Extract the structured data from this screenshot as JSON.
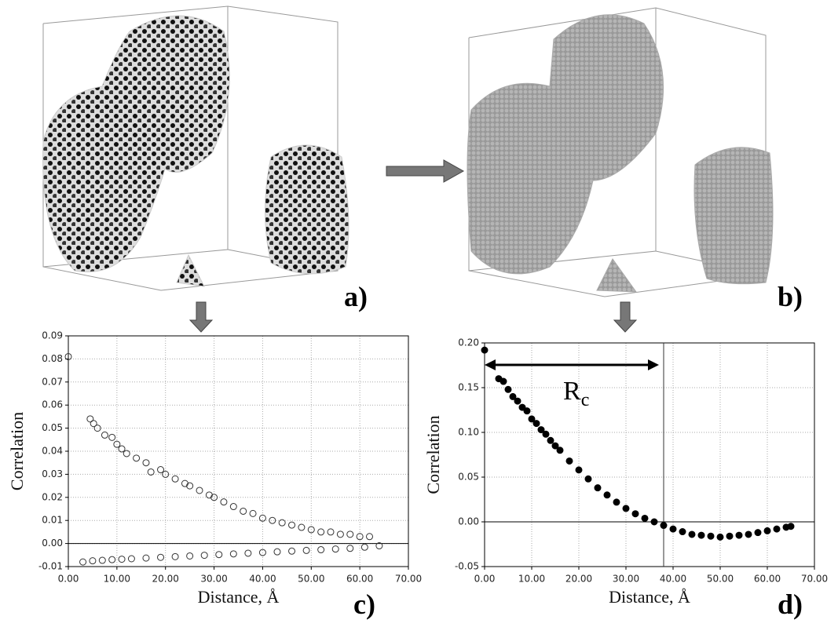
{
  "panels": [
    {
      "label": "a)"
    },
    {
      "label": "b)"
    }
  ],
  "chart_data": [
    {
      "type": "scatter",
      "panel_label": "c)",
      "xlabel": "Distance, Å",
      "ylabel": "Correlation",
      "xlim": [
        0,
        70
      ],
      "ylim": [
        -0.01,
        0.09
      ],
      "grid": true,
      "zero_line": true,
      "marker": "open",
      "color": "#333333",
      "xticks": [
        {
          "value": 0,
          "label": "0.00"
        },
        {
          "value": 10,
          "label": "10.00"
        },
        {
          "value": 20,
          "label": "20.00"
        },
        {
          "value": 30,
          "label": "30.00"
        },
        {
          "value": 40,
          "label": "40.00"
        },
        {
          "value": 50,
          "label": "50.00"
        },
        {
          "value": 60,
          "label": "60.00"
        },
        {
          "value": 70,
          "label": "70.00"
        }
      ],
      "yticks": [
        {
          "value": -0.01,
          "label": "-0.01"
        },
        {
          "value": 0,
          "label": "0.00"
        },
        {
          "value": 0.01,
          "label": "0.01"
        },
        {
          "value": 0.02,
          "label": "0.02"
        },
        {
          "value": 0.03,
          "label": "0.03"
        },
        {
          "value": 0.04,
          "label": "0.04"
        },
        {
          "value": 0.05,
          "label": "0.05"
        },
        {
          "value": 0.06,
          "label": "0.06"
        },
        {
          "value": 0.07,
          "label": "0.07"
        },
        {
          "value": 0.08,
          "label": "0.08"
        },
        {
          "value": 0.09,
          "label": "0.09"
        }
      ],
      "series": [
        {
          "x": [
            0,
            4.5,
            5.2,
            6,
            7.5,
            9,
            10,
            11,
            12,
            14,
            16,
            17,
            19,
            20,
            22,
            24,
            25,
            27,
            29,
            30,
            32,
            34,
            36,
            38,
            40,
            42,
            44,
            46,
            48,
            50,
            52,
            54,
            56,
            58,
            60,
            62
          ],
          "values": [
            0.081,
            0.054,
            0.052,
            0.05,
            0.047,
            0.046,
            0.043,
            0.041,
            0.039,
            0.037,
            0.035,
            0.031,
            0.032,
            0.03,
            0.028,
            0.026,
            0.025,
            0.023,
            0.021,
            0.02,
            0.018,
            0.016,
            0.014,
            0.013,
            0.011,
            0.01,
            0.009,
            0.008,
            0.007,
            0.006,
            0.005,
            0.005,
            0.004,
            0.004,
            0.003,
            0.003
          ]
        },
        {
          "x": [
            3,
            5,
            7,
            9,
            11,
            13,
            16,
            19,
            22,
            25,
            28,
            31,
            34,
            37,
            40,
            43,
            46,
            49,
            52,
            55,
            58,
            61,
            64
          ],
          "values": [
            -0.008,
            -0.0075,
            -0.0073,
            -0.007,
            -0.0068,
            -0.0066,
            -0.0063,
            -0.006,
            -0.0057,
            -0.0054,
            -0.0051,
            -0.0048,
            -0.0045,
            -0.0042,
            -0.0039,
            -0.0036,
            -0.0033,
            -0.003,
            -0.0027,
            -0.0024,
            -0.0021,
            -0.0016,
            -0.001
          ]
        }
      ]
    },
    {
      "type": "scatter",
      "panel_label": "d)",
      "xlabel": "Distance, Å",
      "ylabel": "Correlation",
      "xlim": [
        0,
        70
      ],
      "ylim": [
        -0.05,
        0.2
      ],
      "grid": true,
      "zero_line": true,
      "marker": "filled",
      "color": "#000000",
      "vline": 38,
      "annotations": [
        {
          "text": "R",
          "subscript": "c"
        }
      ],
      "xticks": [
        {
          "value": 0,
          "label": "0.00"
        },
        {
          "value": 10,
          "label": "10.00"
        },
        {
          "value": 20,
          "label": "20.00"
        },
        {
          "value": 30,
          "label": "30.00"
        },
        {
          "value": 40,
          "label": "40.00"
        },
        {
          "value": 50,
          "label": "50.00"
        },
        {
          "value": 60,
          "label": "60.00"
        },
        {
          "value": 70,
          "label": "70.00"
        }
      ],
      "yticks": [
        {
          "value": -0.05,
          "label": "-0.05"
        },
        {
          "value": 0,
          "label": "0.00"
        },
        {
          "value": 0.05,
          "label": "0.05"
        },
        {
          "value": 0.1,
          "label": "0.10"
        },
        {
          "value": 0.15,
          "label": "0.15"
        },
        {
          "value": 0.2,
          "label": "0.20"
        }
      ],
      "series": [
        {
          "x": [
            0,
            3,
            4,
            5,
            6,
            7,
            8,
            9,
            10,
            11,
            12,
            13,
            14,
            15,
            16,
            18,
            20,
            22,
            24,
            26,
            28,
            30,
            32,
            34,
            36,
            38,
            40,
            42,
            44,
            46,
            48,
            50,
            52,
            54,
            56,
            58,
            60,
            62,
            64,
            65
          ],
          "values": [
            0.192,
            0.16,
            0.157,
            0.148,
            0.14,
            0.135,
            0.128,
            0.124,
            0.115,
            0.11,
            0.103,
            0.098,
            0.091,
            0.085,
            0.08,
            0.068,
            0.058,
            0.048,
            0.038,
            0.03,
            0.022,
            0.015,
            0.009,
            0.004,
            0,
            -0.004,
            -0.008,
            -0.011,
            -0.014,
            -0.015,
            -0.016,
            -0.017,
            -0.016,
            -0.015,
            -0.014,
            -0.012,
            -0.01,
            -0.008,
            -0.006,
            -0.005
          ]
        }
      ]
    }
  ]
}
